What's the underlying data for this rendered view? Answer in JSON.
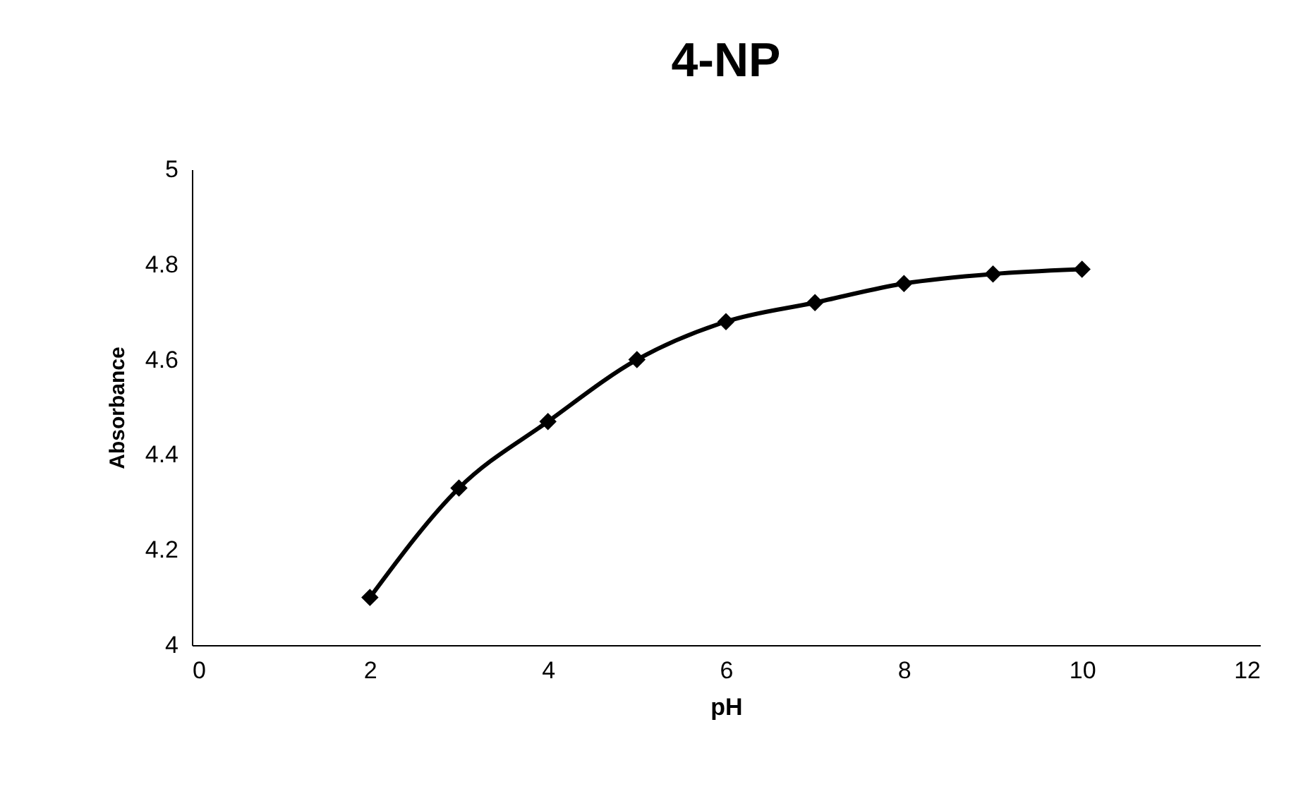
{
  "chart_data": {
    "type": "line",
    "title": "4-NP",
    "xlabel": "pH",
    "ylabel": "Absorbance",
    "x": [
      2,
      3,
      4,
      5,
      6,
      7,
      8,
      9,
      10
    ],
    "series": [
      {
        "color": "#000000",
        "values": [
          4.1,
          4.33,
          4.47,
          4.6,
          4.68,
          4.72,
          4.76,
          4.78,
          4.79
        ]
      }
    ],
    "xlim": [
      0,
      12
    ],
    "xticks": [
      0,
      2,
      4,
      6,
      8,
      10,
      12
    ],
    "ylim": [
      4,
      5
    ],
    "yticks": [
      4,
      4.2,
      4.4,
      4.6,
      4.8,
      5
    ],
    "grid": false,
    "legend": false,
    "marker": "diamond",
    "line_style": "solid"
  }
}
